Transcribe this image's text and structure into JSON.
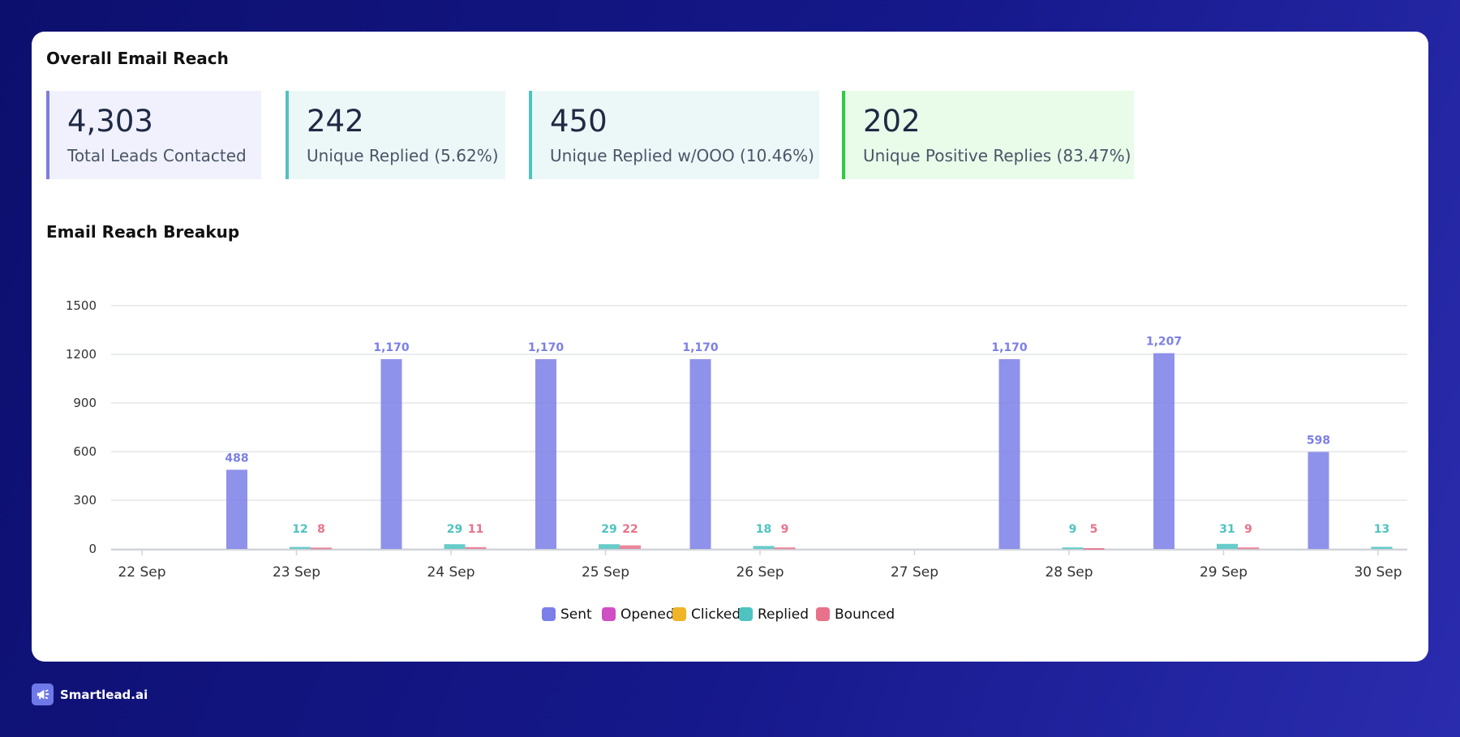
{
  "page": {
    "title": "Overall Email Reach",
    "breakup_title": "Email Reach Breakup"
  },
  "stats": [
    {
      "value": "4,303",
      "label": "Total Leads Contacted",
      "accent": "#7b7fdb"
    },
    {
      "value": "242",
      "label": "Unique Replied (5.62%)",
      "accent": "#4ec3c0"
    },
    {
      "value": "450",
      "label": "Unique Replied w/OOO (10.46%)",
      "accent": "#4ec3c0"
    },
    {
      "value": "202",
      "label": "Unique Positive Replies (83.47%)",
      "accent": "#2ecc40"
    }
  ],
  "chart_data": {
    "type": "bar",
    "categories": [
      "22 Sep",
      "23 Sep",
      "24 Sep",
      "25 Sep",
      "26 Sep",
      "27 Sep",
      "28 Sep",
      "29 Sep",
      "30 Sep"
    ],
    "yticks": [
      0,
      300,
      600,
      900,
      1200,
      1500
    ],
    "ylim": [
      0,
      1500
    ],
    "grid": true,
    "legend_position": "bottom",
    "series": [
      {
        "name": "Sent",
        "color": "#7b7fe8",
        "values": [
          0,
          488,
          1170,
          1170,
          1170,
          0,
          1170,
          1207,
          598
        ]
      },
      {
        "name": "Opened",
        "color": "#d04fc4",
        "values": [
          0,
          0,
          0,
          0,
          0,
          0,
          0,
          0,
          0
        ]
      },
      {
        "name": "Clicked",
        "color": "#f0b429",
        "values": [
          0,
          0,
          0,
          0,
          0,
          0,
          0,
          0,
          0
        ]
      },
      {
        "name": "Replied",
        "color": "#4ec3c0",
        "values": [
          0,
          12,
          29,
          29,
          18,
          0,
          9,
          31,
          13
        ]
      },
      {
        "name": "Bounced",
        "color": "#e8728a",
        "values": [
          0,
          8,
          11,
          22,
          9,
          0,
          5,
          9,
          0
        ]
      }
    ],
    "data_labels": [
      {
        "series": "Sent",
        "category": "23 Sep",
        "text": "488"
      },
      {
        "series": "Sent",
        "category": "24 Sep",
        "text": "1,170"
      },
      {
        "series": "Sent",
        "category": "25 Sep",
        "text": "1,170"
      },
      {
        "series": "Sent",
        "category": "26 Sep",
        "text": "1,170"
      },
      {
        "series": "Sent",
        "category": "28 Sep",
        "text": "1,170"
      },
      {
        "series": "Sent",
        "category": "29 Sep",
        "text": "1,207"
      },
      {
        "series": "Sent",
        "category": "30 Sep",
        "text": "598"
      },
      {
        "series": "Replied",
        "category": "23 Sep",
        "text": "12"
      },
      {
        "series": "Replied",
        "category": "24 Sep",
        "text": "29"
      },
      {
        "series": "Replied",
        "category": "25 Sep",
        "text": "29"
      },
      {
        "series": "Replied",
        "category": "26 Sep",
        "text": "18"
      },
      {
        "series": "Replied",
        "category": "28 Sep",
        "text": "9"
      },
      {
        "series": "Replied",
        "category": "29 Sep",
        "text": "31"
      },
      {
        "series": "Replied",
        "category": "30 Sep",
        "text": "13"
      },
      {
        "series": "Bounced",
        "category": "23 Sep",
        "text": "8"
      },
      {
        "series": "Bounced",
        "category": "24 Sep",
        "text": "11"
      },
      {
        "series": "Bounced",
        "category": "25 Sep",
        "text": "22"
      },
      {
        "series": "Bounced",
        "category": "26 Sep",
        "text": "9"
      },
      {
        "series": "Bounced",
        "category": "28 Sep",
        "text": "5"
      },
      {
        "series": "Bounced",
        "category": "29 Sep",
        "text": "9"
      }
    ]
  },
  "footer": {
    "brand": "Smartlead.ai",
    "logo_icon": "megaphone-icon",
    "logo_color": "#6f78e8"
  }
}
